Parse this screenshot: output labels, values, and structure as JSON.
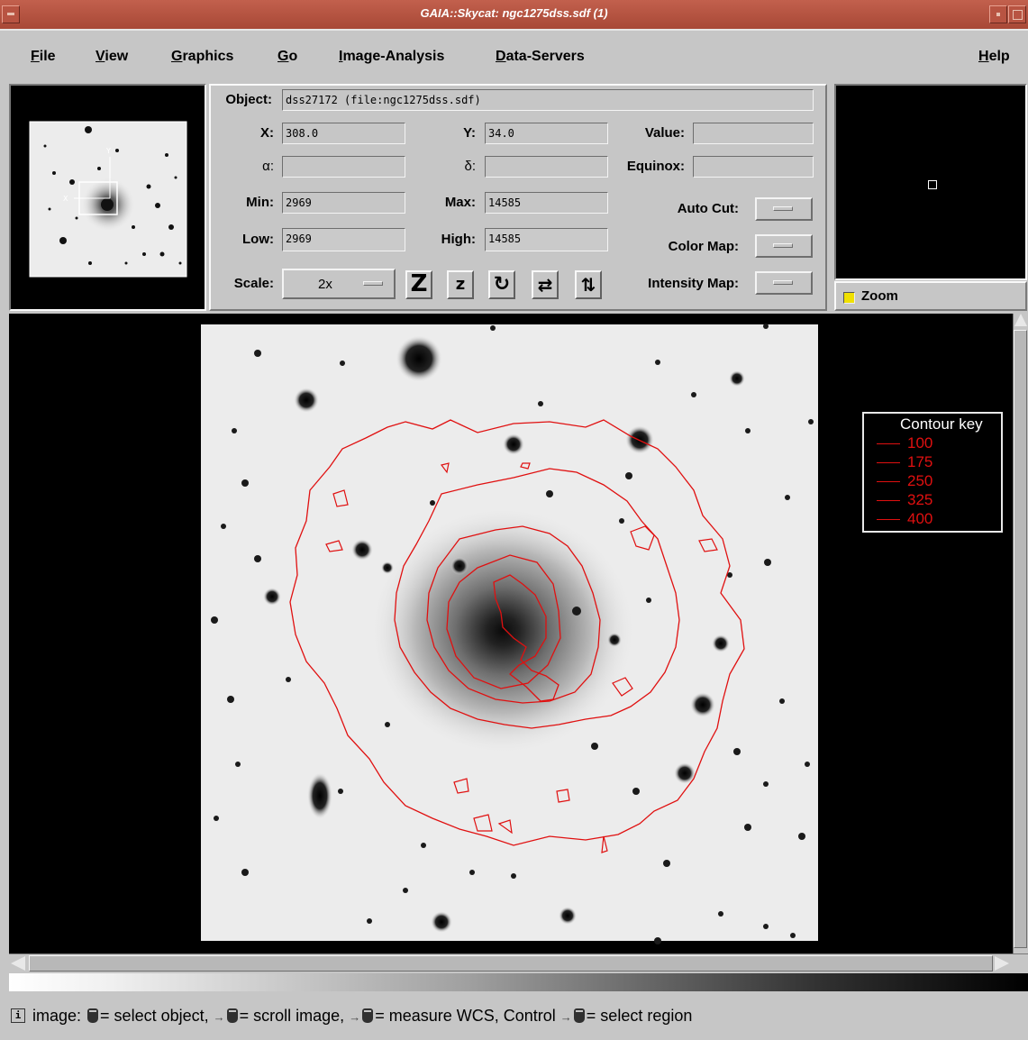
{
  "window": {
    "title": "GAIA::Skycat: ngc1275dss.sdf (1)"
  },
  "menubar": {
    "items": [
      {
        "first": "F",
        "rest": "ile"
      },
      {
        "first": "V",
        "rest": "iew"
      },
      {
        "first": "G",
        "rest": "raphics"
      },
      {
        "first": "G",
        "rest": "o"
      },
      {
        "first": "I",
        "rest": "mage-Analysis"
      },
      {
        "first": "D",
        "rest": "ata-Servers"
      },
      {
        "first": "H",
        "rest": "elp"
      }
    ]
  },
  "info": {
    "object_label": "Object:",
    "object_value": "dss27172 (file:ngc1275dss.sdf)",
    "x_label": "X:",
    "x_value": "308.0",
    "y_label": "Y:",
    "y_value": "34.0",
    "value_label": "Value:",
    "value_value": "",
    "alpha_label": "α:",
    "alpha_value": "",
    "delta_label": "δ:",
    "delta_value": "",
    "equinox_label": "Equinox:",
    "equinox_value": "",
    "min_label": "Min:",
    "min_value": "2969",
    "max_label": "Max:",
    "max_value": "14585",
    "low_label": "Low:",
    "low_value": "2969",
    "high_label": "High:",
    "high_value": "14585",
    "scale_label": "Scale:",
    "scale_value": "2x",
    "autocut_label": "Auto Cut:",
    "colormap_label": "Color Map:",
    "intensitymap_label": "Intensity Map:"
  },
  "toolbar": {
    "zoom_in": "Z",
    "zoom_out": "z",
    "rotate": "↻",
    "flip_x": "⇄",
    "flip_y": "⇅"
  },
  "zoom": {
    "label": "Zoom",
    "checked": true
  },
  "contour_key": {
    "title": "Contour key",
    "color": "#e01010",
    "levels": [
      "100",
      "175",
      "250",
      "325",
      "400"
    ]
  },
  "status": {
    "prefix": "image:",
    "p1": "= select object,",
    "p2": "= scroll image,",
    "p3": "= measure WCS, Control",
    "p4": "= select region"
  }
}
